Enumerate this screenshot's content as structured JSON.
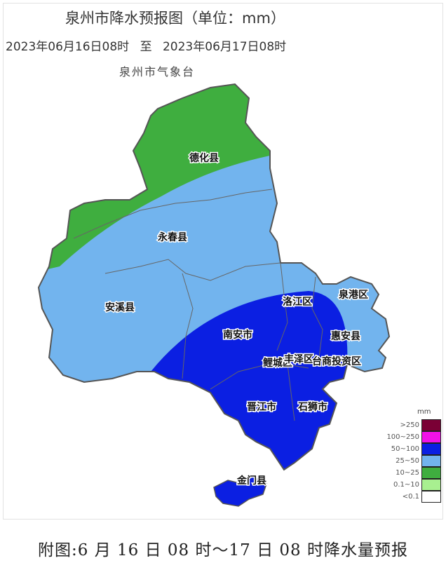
{
  "header": {
    "title": "泉州市降水预报图（单位：mm）",
    "start_time": "2023年06月16日08时",
    "separator": "至",
    "end_time": "2023年06月17日08时",
    "organization": "泉州市气象台"
  },
  "map": {
    "regions": [
      "德化县",
      "永春县",
      "安溪县",
      "南安市",
      "洛江区",
      "泉港区",
      "惠安县",
      "鲤城区",
      "丰泽区",
      "台商投资区",
      "晋江市",
      "石狮市",
      "金门县"
    ],
    "zone_colors": {
      "10~25": "#3fae3f",
      "25~50": "#72b4ee",
      "50~100": "#0b1fe2"
    }
  },
  "legend": {
    "unit": "mm",
    "items": [
      {
        "label": ">250",
        "color": "#7a0035"
      },
      {
        "label": "100~250",
        "color": "#f012e8"
      },
      {
        "label": "50~100",
        "color": "#0b1fe2"
      },
      {
        "label": "25~50",
        "color": "#72b4ee"
      },
      {
        "label": "10~25",
        "color": "#3fae3f"
      },
      {
        "label": "0.1~10",
        "color": "#a8f090"
      },
      {
        "label": "<0.1",
        "color": "#ffffff"
      }
    ]
  },
  "caption": "附图:6 月 16 日 08 时～17 日 08 时降水量预报"
}
